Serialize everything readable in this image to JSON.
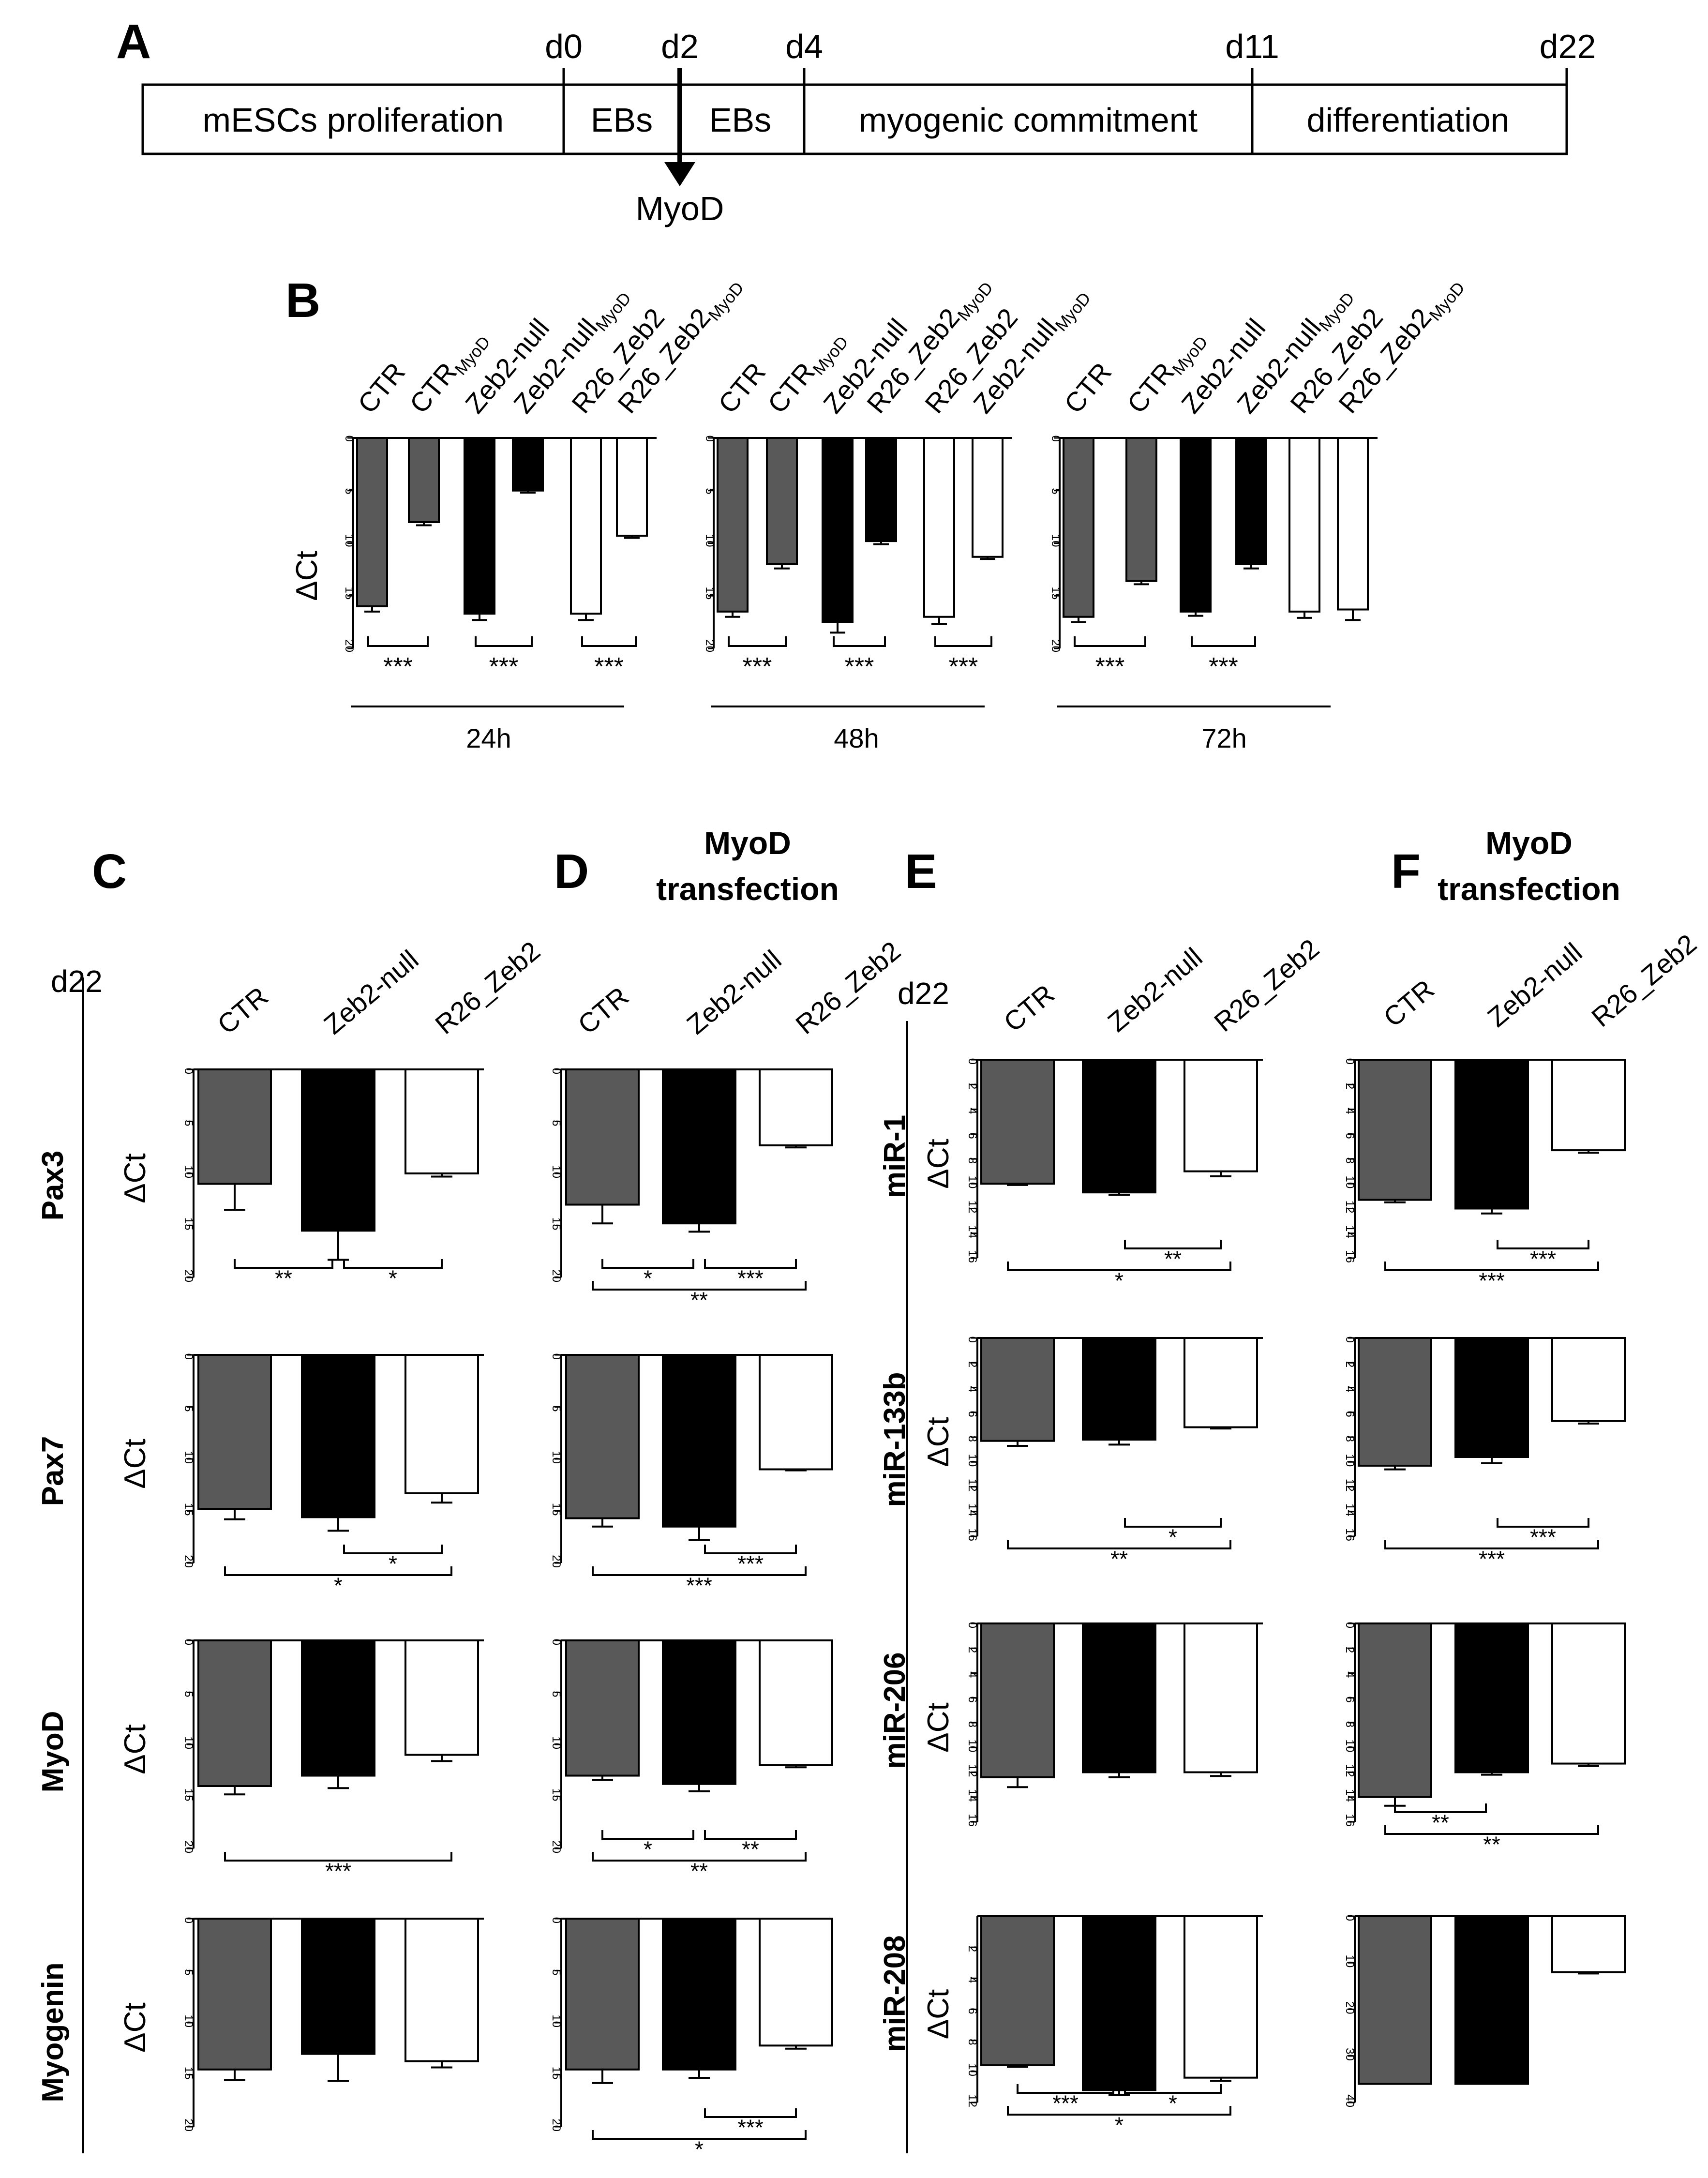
{
  "panel_letters": [
    "A",
    "B",
    "C",
    "D",
    "E",
    "F"
  ],
  "timeline": {
    "days": [
      "d0",
      "d2",
      "d4",
      "d11",
      "d22"
    ],
    "stages": [
      "mESCs proliferation",
      "EBs",
      "EBs",
      "myogenic commitment",
      "differentiation"
    ],
    "arrow_label": "MyoD"
  },
  "headers": {
    "D": "MyoD transfection",
    "F": "MyoD transfection",
    "d22_C": "d22",
    "d22_E": "d22"
  },
  "group_labels": [
    "CTR",
    "Zeb2-null",
    "R26_Zeb2"
  ],
  "row_labels": {
    "C": [
      "Pax3",
      "Pax7",
      "MyoD",
      "Myogenin"
    ],
    "E": [
      "miR-1",
      "miR-133b",
      "miR-206",
      "miR-208"
    ]
  },
  "colors": {
    "CTR": "#595959",
    "Zeb2-null": "#000000",
    "R26_Zeb2": "#ffffff",
    "axis": "#000000"
  },
  "chart_data": [
    {
      "id": "B",
      "type": "bar",
      "ylabel": "ΔCt",
      "ylim": [
        0,
        20
      ],
      "yticks": [
        0,
        5,
        10,
        15,
        20
      ],
      "inverted": true,
      "groups": [
        {
          "time": "24h",
          "labels": [
            "CTR",
            "CTR_MyoD",
            "Zeb2-null",
            "Zeb2-null_MyoD",
            "R26_Zeb2",
            "R26_Zeb2_MyoD"
          ],
          "values": [
            16,
            8,
            16.7,
            5,
            16.7,
            9.3
          ],
          "errors": [
            0.5,
            0.3,
            0.6,
            0.2,
            0.6,
            0.2
          ],
          "brackets": [
            [
              0,
              1,
              "***"
            ],
            [
              2,
              3,
              "***"
            ],
            [
              4,
              5,
              "***"
            ]
          ]
        },
        {
          "time": "48h",
          "labels": [
            "CTR",
            "CTR_MyoD",
            "Zeb2-null",
            "R26_Zeb2_MyoD",
            "R26_Zeb2",
            "Zeb2-null_MyoD"
          ],
          "values": [
            16.5,
            12,
            17.5,
            9.8,
            17,
            11.3
          ],
          "errors": [
            0.5,
            0.4,
            1.0,
            0.3,
            0.7,
            0.2
          ],
          "brackets": [
            [
              0,
              1,
              "***"
            ],
            [
              2,
              3,
              "***"
            ],
            [
              4,
              5,
              "***"
            ]
          ]
        },
        {
          "time": "72h",
          "labels": [
            "CTR",
            "CTR_MyoD",
            "Zeb2-null",
            "Zeb2-null_MyoD",
            "R26_Zeb2",
            "R26_Zeb2_MyoD"
          ],
          "values": [
            17,
            13.6,
            16.5,
            12,
            16.5,
            16.3
          ],
          "errors": [
            0.5,
            0.3,
            0.4,
            0.4,
            0.6,
            1.0
          ],
          "brackets": [
            [
              0,
              1,
              "***"
            ],
            [
              2,
              3,
              "***"
            ]
          ]
        }
      ]
    },
    {
      "id": "C-Pax3",
      "type": "bar",
      "ylabel": "ΔCt",
      "ylim": [
        0,
        20
      ],
      "yticks": [
        0,
        5,
        10,
        15,
        20
      ],
      "inverted": true,
      "categories": [
        "CTR",
        "Zeb2-null",
        "R26_Zeb2"
      ],
      "values": [
        11,
        15.5,
        10
      ],
      "errors": [
        2.5,
        2.8,
        0.3
      ],
      "brackets": [
        [
          0,
          1,
          "**"
        ],
        [
          1,
          2,
          "*"
        ]
      ]
    },
    {
      "id": "C-Pax7",
      "type": "bar",
      "ylabel": "ΔCt",
      "ylim": [
        0,
        20
      ],
      "yticks": [
        0,
        5,
        10,
        15,
        20
      ],
      "inverted": true,
      "categories": [
        "CTR",
        "Zeb2-null",
        "R26_Zeb2"
      ],
      "values": [
        14.8,
        15.6,
        13.3
      ],
      "errors": [
        1.0,
        1.3,
        0.9
      ],
      "brackets": [
        [
          1,
          2,
          "*"
        ],
        [
          0,
          2,
          "*"
        ]
      ]
    },
    {
      "id": "C-MyoD",
      "type": "bar",
      "ylabel": "ΔCt",
      "ylim": [
        0,
        20
      ],
      "yticks": [
        0,
        5,
        10,
        15,
        20
      ],
      "inverted": true,
      "categories": [
        "CTR",
        "Zeb2-null",
        "R26_Zeb2"
      ],
      "values": [
        14,
        13,
        11
      ],
      "errors": [
        0.8,
        1.2,
        0.6
      ],
      "brackets": [
        [
          0,
          2,
          "***"
        ]
      ]
    },
    {
      "id": "C-Myogenin",
      "type": "bar",
      "ylabel": "ΔCt",
      "ylim": [
        0,
        20
      ],
      "yticks": [
        0,
        5,
        10,
        15,
        20
      ],
      "inverted": true,
      "categories": [
        "CTR",
        "Zeb2-null",
        "R26_Zeb2"
      ],
      "values": [
        14.5,
        13,
        13.7
      ],
      "errors": [
        1.0,
        2.6,
        0.6
      ],
      "brackets": []
    },
    {
      "id": "D-Pax3",
      "type": "bar",
      "ylabel": "ΔCt",
      "ylim": [
        0,
        20
      ],
      "yticks": [
        0,
        5,
        10,
        15,
        20
      ],
      "inverted": true,
      "categories": [
        "CTR",
        "Zeb2-null",
        "R26_Zeb2"
      ],
      "values": [
        13,
        14.8,
        7.3
      ],
      "errors": [
        1.8,
        0.8,
        0.2
      ],
      "brackets": [
        [
          0,
          1,
          "*"
        ],
        [
          1,
          2,
          "***"
        ],
        [
          0,
          2,
          "**"
        ]
      ]
    },
    {
      "id": "D-Pax7",
      "type": "bar",
      "ylabel": "ΔCt",
      "ylim": [
        0,
        20
      ],
      "yticks": [
        0,
        5,
        10,
        15,
        20
      ],
      "inverted": true,
      "categories": [
        "CTR",
        "Zeb2-null",
        "R26_Zeb2"
      ],
      "values": [
        15.7,
        16.5,
        11
      ],
      "errors": [
        0.8,
        1.3,
        0.1
      ],
      "brackets": [
        [
          1,
          2,
          "***"
        ],
        [
          0,
          2,
          "***"
        ]
      ]
    },
    {
      "id": "D-MyoD",
      "type": "bar",
      "ylabel": "ΔCt",
      "ylim": [
        0,
        20
      ],
      "yticks": [
        0,
        5,
        10,
        15,
        20
      ],
      "inverted": true,
      "categories": [
        "CTR",
        "Zeb2-null",
        "R26_Zeb2"
      ],
      "values": [
        13,
        13.8,
        12
      ],
      "errors": [
        0.4,
        0.7,
        0.2
      ],
      "brackets": [
        [
          0,
          1,
          "*"
        ],
        [
          1,
          2,
          "**"
        ],
        [
          0,
          2,
          "**"
        ]
      ]
    },
    {
      "id": "D-Myogenin",
      "type": "bar",
      "ylabel": "ΔCt",
      "ylim": [
        0,
        20
      ],
      "yticks": [
        0,
        5,
        10,
        15,
        20
      ],
      "inverted": true,
      "categories": [
        "CTR",
        "Zeb2-null",
        "R26_Zeb2"
      ],
      "values": [
        14.5,
        14.5,
        12.2
      ],
      "errors": [
        1.3,
        0.8,
        0.3
      ],
      "brackets": [
        [
          1,
          2,
          "***"
        ],
        [
          0,
          2,
          "*"
        ]
      ]
    },
    {
      "id": "E-miR-1",
      "type": "bar",
      "ylabel": "ΔCt",
      "ylim": [
        0,
        16
      ],
      "yticks": [
        0,
        2,
        4,
        6,
        8,
        10,
        12,
        14,
        16
      ],
      "inverted": true,
      "categories": [
        "CTR",
        "Zeb2-null",
        "R26_Zeb2"
      ],
      "values": [
        10,
        10.7,
        9
      ],
      "errors": [
        0.1,
        0.2,
        0.4
      ],
      "brackets": [
        [
          1,
          2,
          "**"
        ],
        [
          0,
          2,
          "*"
        ]
      ]
    },
    {
      "id": "E-miR-133b",
      "type": "bar",
      "ylabel": "ΔCt",
      "ylim": [
        0,
        16
      ],
      "yticks": [
        0,
        2,
        4,
        6,
        8,
        10,
        12,
        14,
        16
      ],
      "inverted": true,
      "categories": [
        "CTR",
        "Zeb2-null",
        "R26_Zeb2"
      ],
      "values": [
        8.3,
        8.2,
        7.2
      ],
      "errors": [
        0.4,
        0.4,
        0.1
      ],
      "brackets": [
        [
          1,
          2,
          "*"
        ],
        [
          0,
          2,
          "**"
        ]
      ]
    },
    {
      "id": "E-miR-206",
      "type": "bar",
      "ylabel": "ΔCt",
      "ylim": [
        0,
        16
      ],
      "yticks": [
        0,
        2,
        4,
        6,
        8,
        10,
        12,
        14,
        16
      ],
      "inverted": true,
      "categories": [
        "CTR",
        "Zeb2-null",
        "R26_Zeb2"
      ],
      "values": [
        12.4,
        12,
        12
      ],
      "errors": [
        0.8,
        0.4,
        0.3
      ],
      "brackets": []
    },
    {
      "id": "E-miR-208",
      "type": "bar",
      "ylabel": "ΔCt",
      "ylim": [
        0,
        12
      ],
      "yticks": [
        2,
        4,
        6,
        8,
        10,
        12
      ],
      "inverted": true,
      "categories": [
        "CTR",
        "Zeb2-null",
        "R26_Zeb2"
      ],
      "values": [
        9.6,
        11.2,
        10.4
      ],
      "errors": [
        0.1,
        0.3,
        0.2
      ],
      "brackets": [
        [
          0,
          1,
          "***"
        ],
        [
          1,
          2,
          "*"
        ],
        [
          0,
          2,
          "*"
        ]
      ]
    },
    {
      "id": "F-miR-1",
      "type": "bar",
      "ylabel": "",
      "ylim": [
        0,
        16
      ],
      "yticks": [
        0,
        2,
        4,
        6,
        8,
        10,
        12,
        14,
        16
      ],
      "inverted": true,
      "categories": [
        "CTR",
        "Zeb2-null",
        "R26_Zeb2"
      ],
      "values": [
        11.3,
        12,
        7.3
      ],
      "errors": [
        0.2,
        0.4,
        0.2
      ],
      "brackets": [
        [
          1,
          2,
          "***"
        ],
        [
          0,
          2,
          "***"
        ]
      ]
    },
    {
      "id": "F-miR-133b",
      "type": "bar",
      "ylabel": "",
      "ylim": [
        0,
        16
      ],
      "yticks": [
        0,
        2,
        4,
        6,
        8,
        10,
        12,
        14,
        16
      ],
      "inverted": true,
      "categories": [
        "CTR",
        "Zeb2-null",
        "R26_Zeb2"
      ],
      "values": [
        10.3,
        9.6,
        6.7
      ],
      "errors": [
        0.3,
        0.5,
        0.2
      ],
      "brackets": [
        [
          1,
          2,
          "***"
        ],
        [
          0,
          2,
          "***"
        ]
      ]
    },
    {
      "id": "F-miR-206",
      "type": "bar",
      "ylabel": "",
      "ylim": [
        0,
        16
      ],
      "yticks": [
        0,
        2,
        4,
        6,
        8,
        10,
        12,
        14,
        16
      ],
      "inverted": true,
      "categories": [
        "CTR",
        "Zeb2-null",
        "R26_Zeb2"
      ],
      "values": [
        14,
        12,
        11.3
      ],
      "errors": [
        0.7,
        0.2,
        0.2
      ],
      "brackets": [
        [
          0,
          1,
          "**"
        ],
        [
          0,
          2,
          "**"
        ]
      ]
    },
    {
      "id": "F-miR-208",
      "type": "bar",
      "ylabel": "",
      "ylim": [
        0,
        40
      ],
      "yticks": [
        0,
        10,
        20,
        30,
        40
      ],
      "inverted": true,
      "categories": [
        "CTR",
        "Zeb2-null",
        "R26_Zeb2"
      ],
      "values": [
        36,
        36,
        12
      ],
      "errors": [
        0,
        0,
        0.3
      ],
      "brackets": []
    }
  ]
}
